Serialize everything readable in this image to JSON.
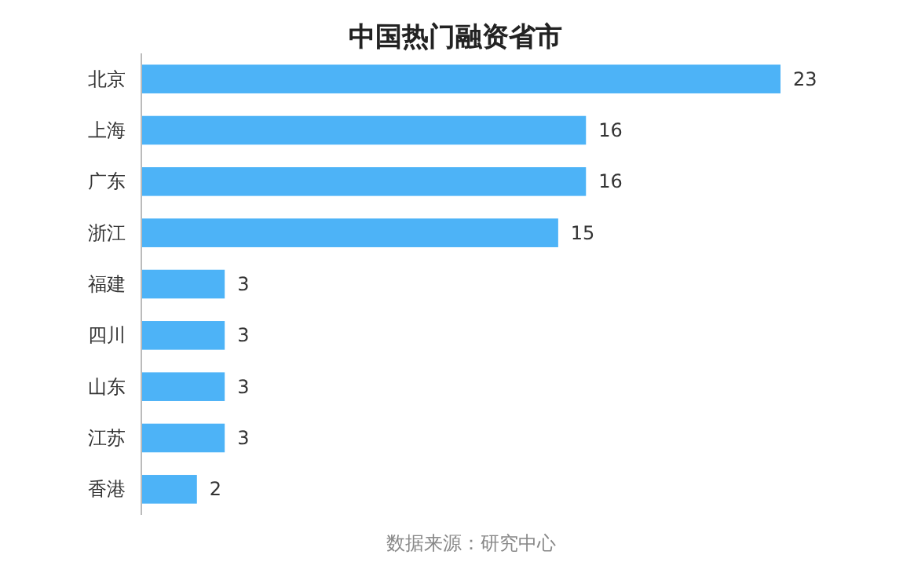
{
  "chart_data": {
    "type": "bar",
    "orientation": "horizontal",
    "title": "中国热门融资省市",
    "categories": [
      "北京",
      "上海",
      "广东",
      "浙江",
      "福建",
      "四川",
      "山东",
      "江苏",
      "香港"
    ],
    "values": [
      23,
      16,
      16,
      15,
      3,
      3,
      3,
      3,
      2
    ],
    "color": "#4db3f7",
    "data_labels": true,
    "annotations": [
      "数据来源：研究中心"
    ]
  }
}
